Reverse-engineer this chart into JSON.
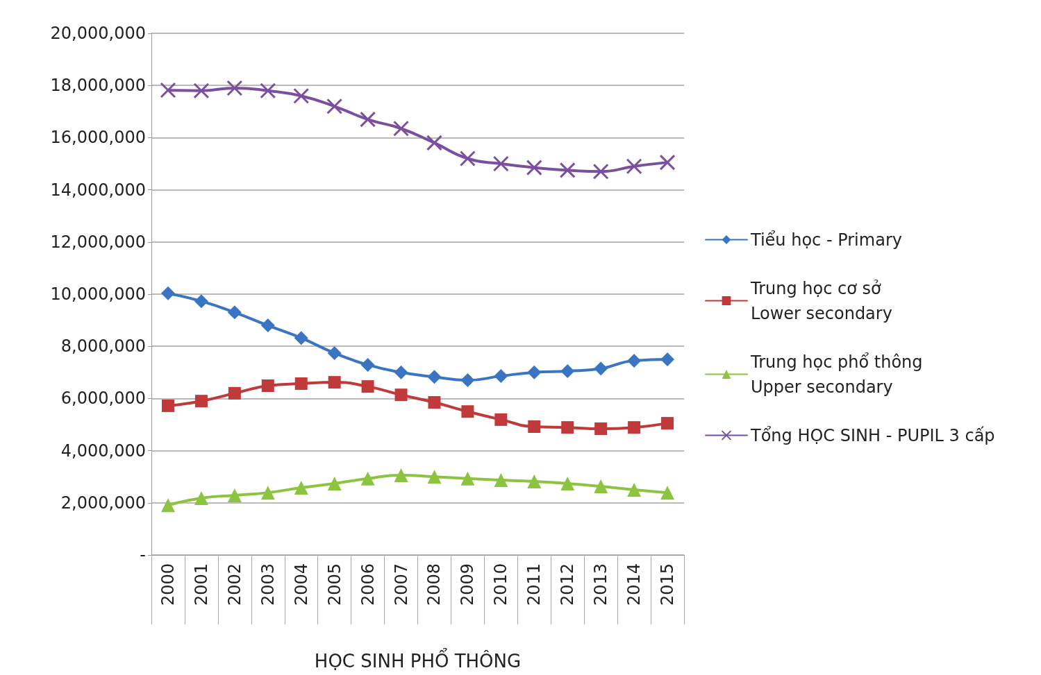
{
  "chart_data": {
    "type": "line",
    "xlabel": "HỌC SINH PHỔ THÔNG",
    "categories": [
      "2000",
      "2001",
      "2002",
      "2003",
      "2004",
      "2005",
      "2006",
      "2007",
      "2008",
      "2009",
      "2010",
      "2011",
      "2012",
      "2013",
      "2014",
      "2015"
    ],
    "series": [
      {
        "name": "Tiểu học - Primary",
        "color": "#3a75c4",
        "marker": "diamond",
        "values": [
          10030000,
          9730000,
          9300000,
          8800000,
          8320000,
          7740000,
          7290000,
          7000000,
          6830000,
          6700000,
          6860000,
          7000000,
          7050000,
          7150000,
          7450000,
          7500000
        ]
      },
      {
        "name": "Trung học cơ sở\nLower secondary",
        "color": "#c0393b",
        "marker": "square",
        "values": [
          5720000,
          5900000,
          6200000,
          6490000,
          6570000,
          6620000,
          6460000,
          6140000,
          5850000,
          5500000,
          5190000,
          4920000,
          4890000,
          4840000,
          4890000,
          5050000
        ]
      },
      {
        "name": "Trung học phổ thông\nUpper secondary",
        "color": "#8dc43f",
        "marker": "triangle",
        "values": [
          1910000,
          2180000,
          2290000,
          2390000,
          2580000,
          2740000,
          2930000,
          3060000,
          3000000,
          2930000,
          2870000,
          2820000,
          2740000,
          2630000,
          2500000,
          2390000
        ]
      },
      {
        "name": "Tổng HỌC SINH - PUPIL 3 cấp",
        "color": "#7a4fa0",
        "marker": "cross",
        "values": [
          17820000,
          17800000,
          17900000,
          17800000,
          17600000,
          17200000,
          16700000,
          16350000,
          15800000,
          15200000,
          15000000,
          14850000,
          14750000,
          14700000,
          14900000,
          15050000
        ]
      }
    ],
    "ylim": [
      0,
      20000000
    ],
    "yticks": [
      {
        "value": 0,
        "label": "-"
      },
      {
        "value": 2000000,
        "label": "2,000,000"
      },
      {
        "value": 4000000,
        "label": "4,000,000"
      },
      {
        "value": 6000000,
        "label": "6,000,000"
      },
      {
        "value": 8000000,
        "label": "8,000,000"
      },
      {
        "value": 10000000,
        "label": "10,000,000"
      },
      {
        "value": 12000000,
        "label": "12,000,000"
      },
      {
        "value": 14000000,
        "label": "14,000,000"
      },
      {
        "value": 16000000,
        "label": "16,000,000"
      },
      {
        "value": 18000000,
        "label": "18,000,000"
      },
      {
        "value": 20000000,
        "label": "20,000,000"
      }
    ],
    "grid": "y",
    "legend": "right"
  }
}
